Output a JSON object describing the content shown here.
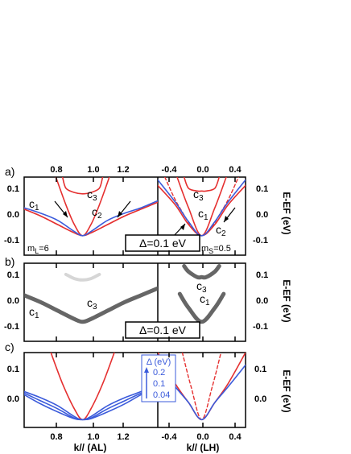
{
  "chart_data": [
    {
      "panel": "a)",
      "type": "line",
      "subpanels": [
        {
          "name": "AL",
          "x_ticks": [
            "0.8",
            "1.0",
            "1.2"
          ],
          "y_ticks": [
            "0.1",
            "0.0",
            "-0.1"
          ],
          "xlim": [
            0.65,
            1.45
          ],
          "ylim": [
            -0.13,
            0.15
          ],
          "series": [
            {
              "kind": "red-solid",
              "points": [
                [
                  0.65,
                  0.035
                ],
                [
                  0.75,
                  0.01
                ],
                [
                  0.85,
                  -0.02
                ],
                [
                  0.95,
                  -0.05
                ],
                [
                  1.0,
                  -0.06
                ],
                [
                  1.05,
                  -0.05
                ],
                [
                  1.15,
                  -0.02
                ],
                [
                  1.25,
                  0.01
                ],
                [
                  1.35,
                  0.035
                ],
                [
                  1.45,
                  0.06
                ]
              ]
            },
            {
              "kind": "red-solid",
              "points": [
                [
                  0.84,
                  0.15
                ],
                [
                  0.9,
                  0.05
                ],
                [
                  0.95,
                  -0.02
                ],
                [
                  1.0,
                  -0.06
                ],
                [
                  1.05,
                  -0.02
                ],
                [
                  1.1,
                  0.05
                ],
                [
                  1.16,
                  0.15
                ]
              ]
            },
            {
              "kind": "red-solid",
              "points": [
                [
                  0.88,
                  0.15
                ],
                [
                  0.9,
                  0.11
                ],
                [
                  0.95,
                  0.095
                ],
                [
                  1.0,
                  0.09
                ],
                [
                  1.05,
                  0.095
                ],
                [
                  1.1,
                  0.11
                ],
                [
                  1.12,
                  0.15
                ]
              ]
            },
            {
              "kind": "red-dashed",
              "points": [
                [
                  0.65,
                  0.035
                ],
                [
                  0.75,
                  0.01
                ],
                [
                  0.85,
                  -0.02
                ],
                [
                  0.95,
                  -0.05
                ],
                [
                  1.0,
                  -0.06
                ],
                [
                  1.05,
                  -0.05
                ],
                [
                  1.15,
                  -0.02
                ],
                [
                  1.25,
                  0.01
                ],
                [
                  1.35,
                  0.035
                ],
                [
                  1.45,
                  0.06
                ]
              ]
            },
            {
              "kind": "blue",
              "points": [
                [
                  0.65,
                  0.04
                ],
                [
                  0.75,
                  0.02
                ],
                [
                  0.85,
                  -0.005
                ],
                [
                  0.95,
                  -0.045
                ],
                [
                  1.0,
                  -0.06
                ],
                [
                  1.05,
                  -0.045
                ],
                [
                  1.15,
                  -0.005
                ],
                [
                  1.25,
                  0.02
                ],
                [
                  1.35,
                  0.04
                ],
                [
                  1.45,
                  0.065
                ]
              ]
            }
          ],
          "annotations": [
            "c1",
            "c3",
            "c2",
            "mL=6"
          ]
        },
        {
          "name": "LH",
          "x_ticks": [
            "-0.4",
            "0.0",
            "0.4"
          ],
          "y_ticks": [
            "0.1",
            "0.0",
            "-0.1"
          ],
          "xlim": [
            -0.5,
            0.5
          ],
          "ylim": [
            -0.13,
            0.15
          ],
          "series": [
            {
              "kind": "red-solid",
              "points": [
                [
                  -0.5,
                  0.12
                ],
                [
                  -0.3,
                  0.05
                ],
                [
                  -0.15,
                  -0.02
                ],
                [
                  0.0,
                  -0.06
                ],
                [
                  0.15,
                  -0.02
                ],
                [
                  0.3,
                  0.05
                ],
                [
                  0.5,
                  0.12
                ]
              ]
            },
            {
              "kind": "red-solid",
              "points": [
                [
                  -0.28,
                  0.15
                ],
                [
                  -0.15,
                  0.04
                ],
                [
                  0.0,
                  -0.06
                ],
                [
                  0.15,
                  0.04
                ],
                [
                  0.28,
                  0.15
                ]
              ]
            },
            {
              "kind": "red-solid",
              "points": [
                [
                  -0.2,
                  0.15
                ],
                [
                  -0.15,
                  0.11
                ],
                [
                  -0.05,
                  0.1
                ],
                [
                  0.0,
                  0.1
                ],
                [
                  0.05,
                  0.1
                ],
                [
                  0.15,
                  0.11
                ],
                [
                  0.2,
                  0.15
                ]
              ]
            },
            {
              "kind": "red-dashed",
              "points": [
                [
                  -0.42,
                  0.15
                ],
                [
                  -0.25,
                  0.04
                ],
                [
                  0.0,
                  -0.06
                ],
                [
                  0.25,
                  0.04
                ],
                [
                  0.42,
                  0.15
                ]
              ]
            },
            {
              "kind": "blue",
              "points": [
                [
                  -0.5,
                  0.14
                ],
                [
                  -0.3,
                  0.06
                ],
                [
                  -0.15,
                  -0.01
                ],
                [
                  0.0,
                  -0.06
                ],
                [
                  0.15,
                  -0.01
                ],
                [
                  0.3,
                  0.06
                ],
                [
                  0.5,
                  0.14
                ]
              ]
            }
          ],
          "annotations": [
            "c3",
            "c1",
            "c2",
            "mS=0.5"
          ]
        }
      ],
      "right_axis_label": "E-EF (eV)",
      "box_label": "Δ=0.1 eV"
    },
    {
      "panel": "b)",
      "type": "line",
      "subpanels": [
        {
          "name": "AL",
          "y_ticks": [
            "0.1",
            "0.0",
            "-0.1"
          ],
          "series": [
            {
              "kind": "gray-thick",
              "points": [
                [
                  0.65,
                  0.035
                ],
                [
                  0.75,
                  0.01
                ],
                [
                  0.85,
                  -0.02
                ],
                [
                  0.95,
                  -0.05
                ],
                [
                  1.0,
                  -0.06
                ],
                [
                  1.05,
                  -0.05
                ],
                [
                  1.15,
                  -0.02
                ],
                [
                  1.25,
                  0.01
                ],
                [
                  1.35,
                  0.035
                ],
                [
                  1.45,
                  0.06
                ]
              ]
            },
            {
              "kind": "gray-faint",
              "points": [
                [
                  0.9,
                  0.11
                ],
                [
                  0.95,
                  0.095
                ],
                [
                  1.0,
                  0.09
                ],
                [
                  1.05,
                  0.095
                ],
                [
                  1.1,
                  0.11
                ]
              ]
            }
          ],
          "annotations": [
            "c3",
            "c1"
          ]
        },
        {
          "name": "LH",
          "y_ticks": [
            "0.1",
            "0.0",
            "-0.1"
          ],
          "series": [
            {
              "kind": "gray-thick",
              "points": [
                [
                  -0.25,
                  0.04
                ],
                [
                  -0.15,
                  -0.01
                ],
                [
                  0.0,
                  -0.06
                ],
                [
                  0.15,
                  -0.01
                ],
                [
                  0.25,
                  0.04
                ]
              ]
            },
            {
              "kind": "gray-thick",
              "points": [
                [
                  -0.2,
                  0.14
                ],
                [
                  -0.15,
                  0.12
                ],
                [
                  -0.05,
                  0.1
                ],
                [
                  0.0,
                  0.1
                ],
                [
                  0.05,
                  0.1
                ],
                [
                  0.15,
                  0.12
                ],
                [
                  0.2,
                  0.14
                ]
              ]
            }
          ],
          "annotations": [
            "c3",
            "c1"
          ]
        }
      ],
      "right_axis_label": "E-EF (eV)",
      "box_label": "Δ=0.1 eV"
    },
    {
      "panel": "c)",
      "type": "line",
      "subpanels": [
        {
          "name": "AL",
          "x_ticks": [
            "0.8",
            "1.0",
            "1.2"
          ],
          "y_ticks": [
            "0.1",
            "0.0"
          ],
          "xlabel": "k// (AL)",
          "xlim": [
            0.65,
            1.45
          ],
          "ylim": [
            -0.08,
            0.16
          ],
          "series": [
            {
              "kind": "red-solid",
              "points": [
                [
                  0.81,
                  0.16
                ],
                [
                  0.88,
                  0.06
                ],
                [
                  0.95,
                  -0.02
                ],
                [
                  1.0,
                  -0.055
                ],
                [
                  1.05,
                  -0.02
                ],
                [
                  1.12,
                  0.06
                ],
                [
                  1.19,
                  0.16
                ]
              ]
            },
            {
              "kind": "blue",
              "name": "0.2",
              "points": [
                [
                  0.65,
                  0.035
                ],
                [
                  0.75,
                  0.015
                ],
                [
                  0.85,
                  -0.01
                ],
                [
                  0.95,
                  -0.045
                ],
                [
                  1.0,
                  -0.055
                ],
                [
                  1.05,
                  -0.045
                ],
                [
                  1.15,
                  -0.01
                ],
                [
                  1.25,
                  0.015
                ],
                [
                  1.35,
                  0.035
                ],
                [
                  1.45,
                  0.06
                ]
              ]
            },
            {
              "kind": "blue",
              "name": "0.1",
              "points": [
                [
                  0.65,
                  0.03
                ],
                [
                  0.75,
                  0.005
                ],
                [
                  0.85,
                  -0.02
                ],
                [
                  0.95,
                  -0.05
                ],
                [
                  1.0,
                  -0.055
                ],
                [
                  1.05,
                  -0.05
                ],
                [
                  1.15,
                  -0.02
                ],
                [
                  1.25,
                  0.005
                ],
                [
                  1.35,
                  0.03
                ],
                [
                  1.45,
                  0.055
                ]
              ]
            },
            {
              "kind": "blue",
              "name": "0.04",
              "points": [
                [
                  0.65,
                  0.025
                ],
                [
                  0.75,
                  -0.005
                ],
                [
                  0.85,
                  -0.03
                ],
                [
                  0.95,
                  -0.052
                ],
                [
                  1.0,
                  -0.055
                ],
                [
                  1.05,
                  -0.052
                ],
                [
                  1.15,
                  -0.03
                ],
                [
                  1.25,
                  -0.005
                ],
                [
                  1.35,
                  0.025
                ],
                [
                  1.45,
                  0.05
                ]
              ]
            }
          ]
        },
        {
          "name": "LH",
          "x_ticks": [
            "-0.4",
            "0.0",
            "0.4"
          ],
          "y_ticks": [
            "0.1",
            "0.0"
          ],
          "xlabel": "k// (LH)",
          "xlim": [
            -0.5,
            0.5
          ],
          "ylim": [
            -0.08,
            0.16
          ],
          "series": [
            {
              "kind": "red-solid",
              "points": [
                [
                  -0.5,
                  0.16
                ],
                [
                  -0.3,
                  0.06
                ],
                [
                  -0.15,
                  0.0
                ],
                [
                  0.0,
                  -0.055
                ],
                [
                  0.15,
                  0.0
                ],
                [
                  0.3,
                  0.06
                ],
                [
                  0.5,
                  0.16
                ]
              ]
            },
            {
              "kind": "red-dashed",
              "points": [
                [
                  -0.22,
                  0.16
                ],
                [
                  -0.12,
                  0.05
                ],
                [
                  0.0,
                  -0.055
                ],
                [
                  0.12,
                  0.05
                ],
                [
                  0.22,
                  0.16
                ]
              ]
            },
            {
              "kind": "blue",
              "points": [
                [
                  -0.5,
                  0.12
                ],
                [
                  -0.3,
                  0.05
                ],
                [
                  -0.15,
                  0.0
                ],
                [
                  0.0,
                  -0.055
                ],
                [
                  0.15,
                  0.0
                ],
                [
                  0.3,
                  0.05
                ],
                [
                  0.5,
                  0.12
                ]
              ]
            }
          ]
        }
      ],
      "right_axis_label": "E-EF (eV)",
      "legend": {
        "title": "Δ (eV)",
        "entries": [
          "0.2",
          "0.1",
          "0.04"
        ]
      }
    }
  ],
  "colors": {
    "red": "#e53030",
    "blue": "#3b5bdb",
    "gray": "#555555"
  }
}
